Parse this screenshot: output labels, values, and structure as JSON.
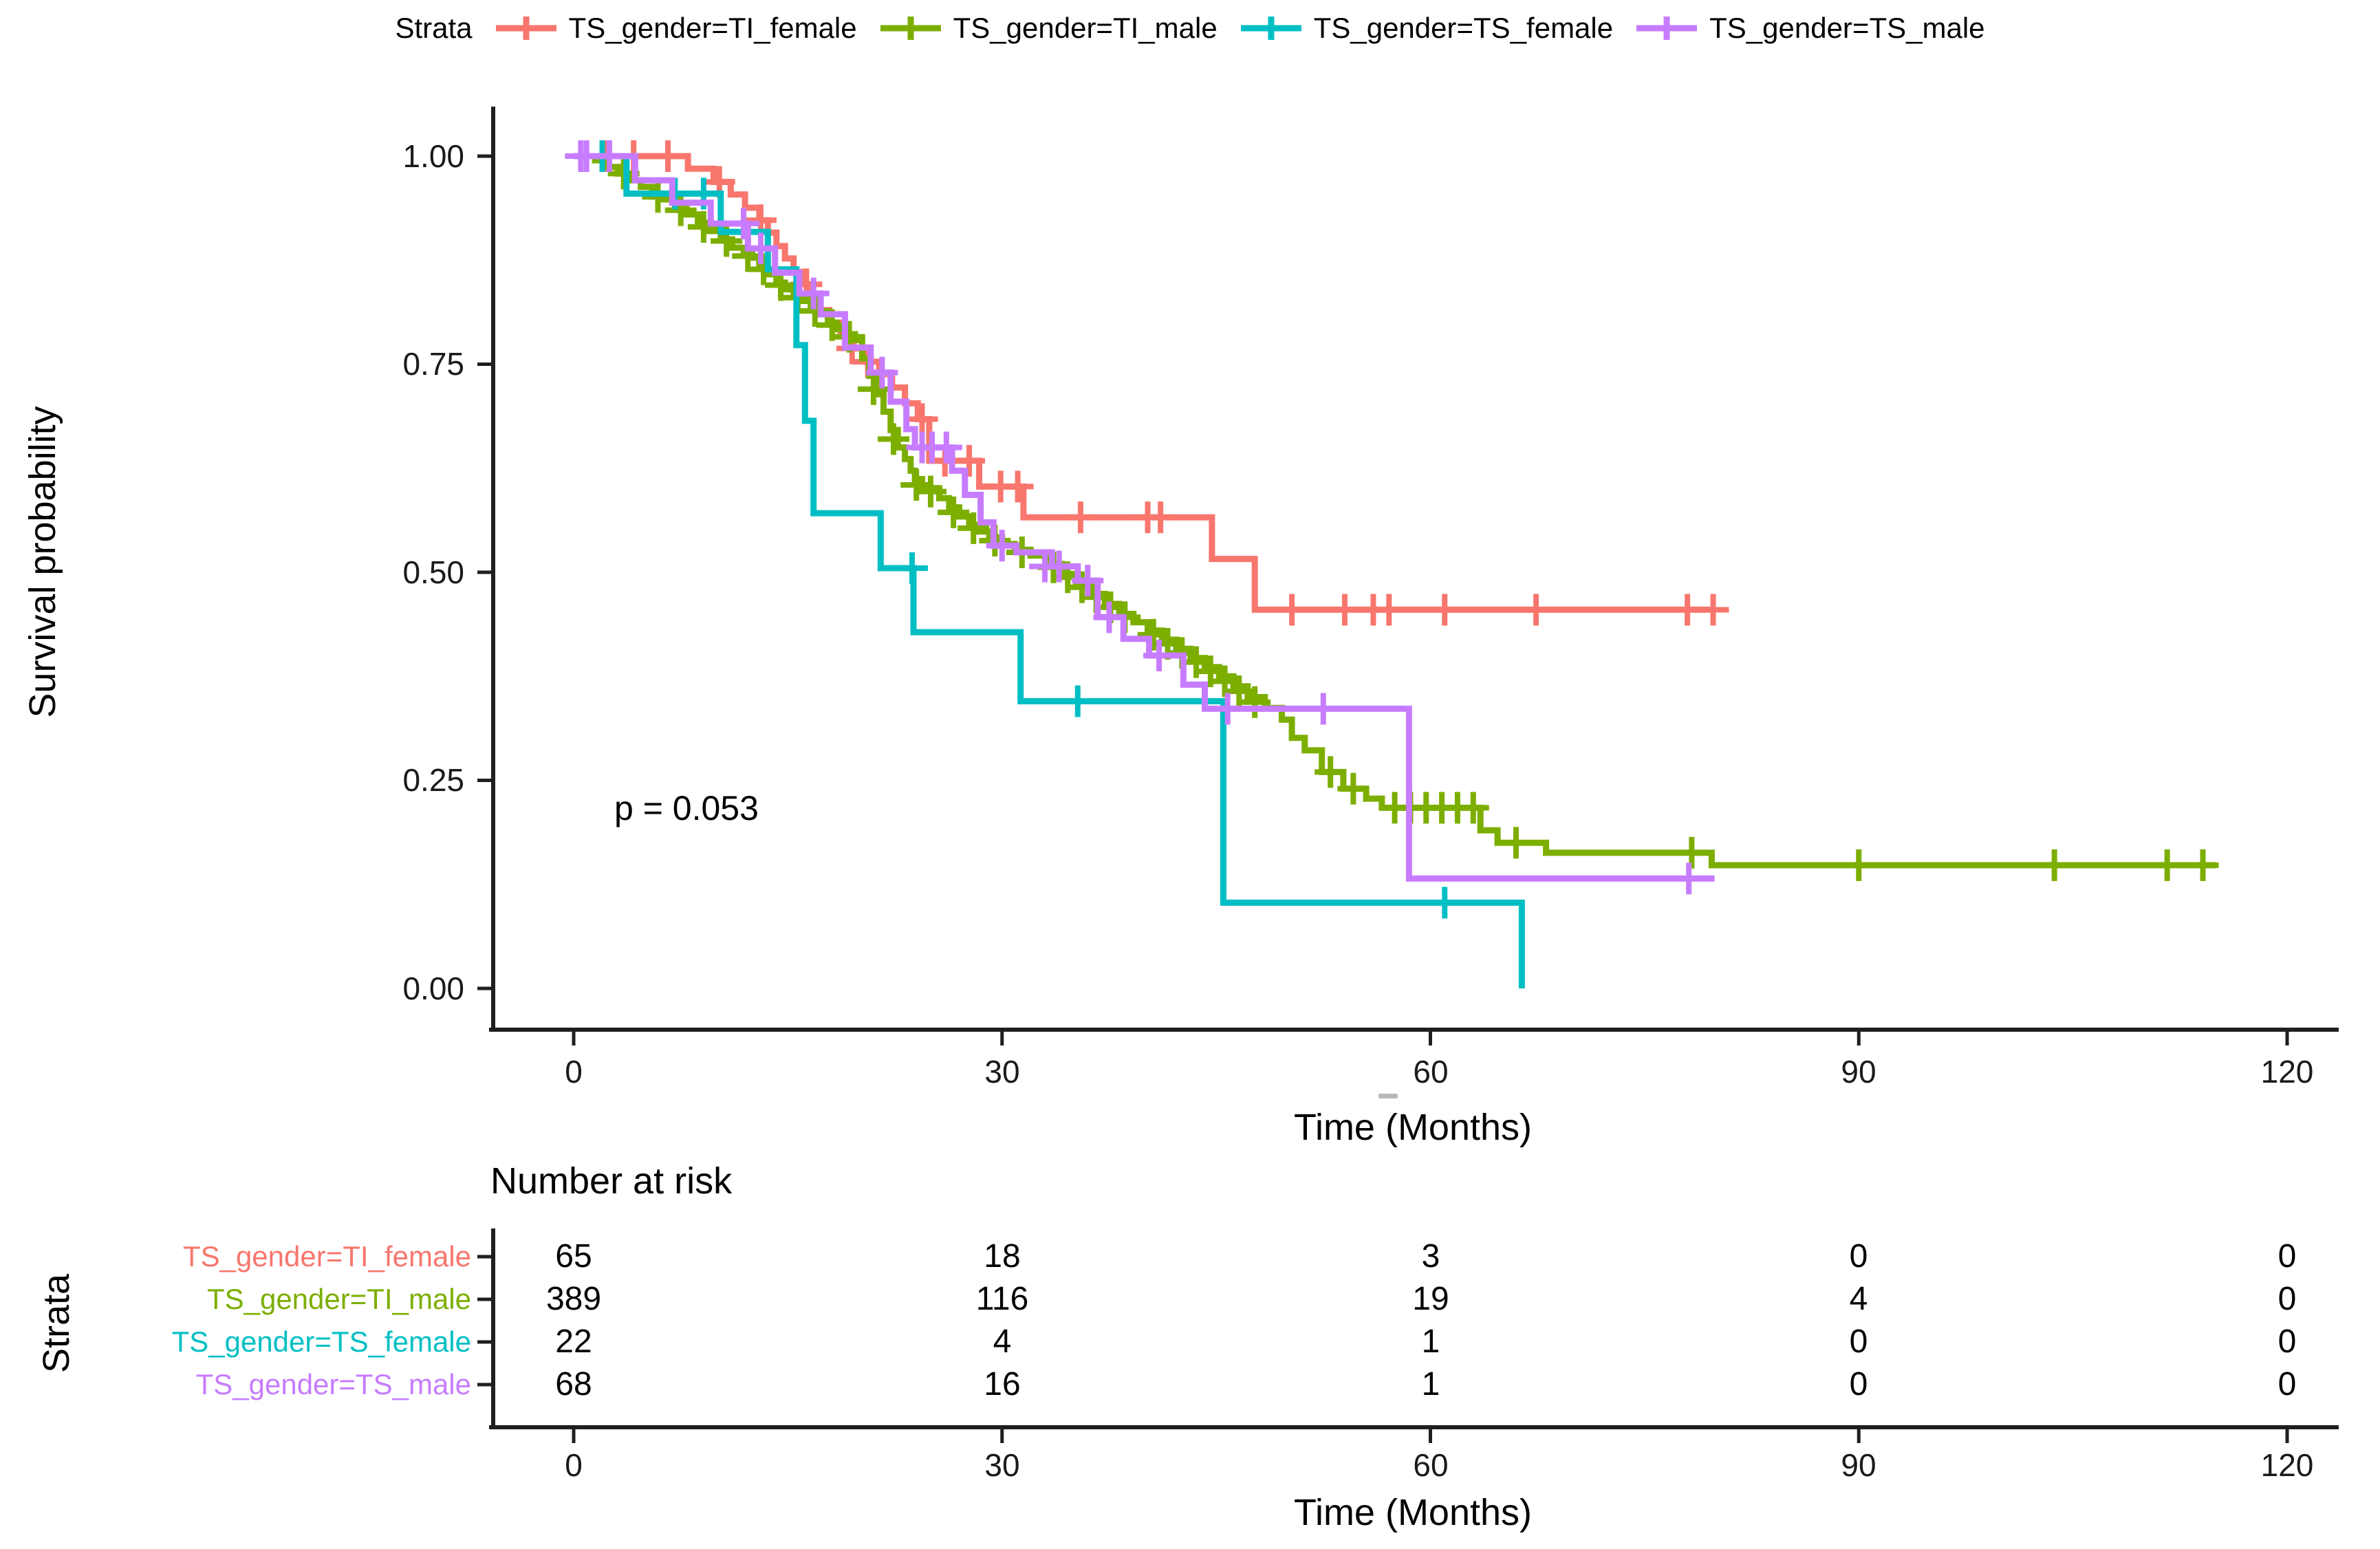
{
  "legend": {
    "title": "Strata",
    "items": [
      {
        "label": "TS_gender=TI_female",
        "color": "#F8766D"
      },
      {
        "label": "TS_gender=TI_male",
        "color": "#7CAE00"
      },
      {
        "label": "TS_gender=TS_female",
        "color": "#00BFC4"
      },
      {
        "label": "TS_gender=TS_male",
        "color": "#C77CFF"
      }
    ]
  },
  "y_axis": {
    "label": "Survival probability",
    "ticks": [
      "1.00",
      "0.75",
      "0.50",
      "0.25",
      "0.00"
    ]
  },
  "x_axis": {
    "label": "Time (Months)",
    "ticks": [
      "0",
      "30",
      "60",
      "90",
      "120"
    ]
  },
  "annotation": {
    "p_value": "p = 0.053"
  },
  "risk_table": {
    "title": "Number at risk",
    "axis_label": "Strata",
    "x_label": "Time (Months)",
    "columns": [
      "0",
      "30",
      "60",
      "90",
      "120"
    ],
    "rows": [
      {
        "label": "TS_gender=TI_female",
        "color": "#F8766D",
        "values": [
          "65",
          "18",
          "3",
          "0",
          "0"
        ]
      },
      {
        "label": "TS_gender=TI_male",
        "color": "#7CAE00",
        "values": [
          "389",
          "116",
          "19",
          "4",
          "0"
        ]
      },
      {
        "label": "TS_gender=TS_female",
        "color": "#00BFC4",
        "values": [
          "22",
          "4",
          "1",
          "0",
          "0"
        ]
      },
      {
        "label": "TS_gender=TS_male",
        "color": "#C77CFF",
        "values": [
          "68",
          "16",
          "1",
          "0",
          "0"
        ]
      }
    ]
  },
  "chart_data": {
    "type": "line",
    "subtype": "kaplan_meier_step",
    "title": "",
    "xlabel": "Time (Months)",
    "ylabel": "Survival probability",
    "xlim": [
      0,
      120
    ],
    "ylim": [
      0,
      1
    ],
    "x_ticks": [
      0,
      30,
      60,
      90,
      120
    ],
    "y_ticks": [
      1.0,
      0.75,
      0.5,
      0.25,
      0.0
    ],
    "grid": false,
    "legend_position": "top",
    "p_value_text": "p = 0.053",
    "series": [
      {
        "name": "TS_gender=TI_female",
        "color": "#F8766D",
        "n_start": 65,
        "end_t": 80,
        "steps": [
          [
            0,
            1.0
          ],
          [
            8,
            0.985
          ],
          [
            9.8,
            0.969
          ],
          [
            11,
            0.954
          ],
          [
            12,
            0.938
          ],
          [
            13,
            0.923
          ],
          [
            13.6,
            0.908
          ],
          [
            14.2,
            0.892
          ],
          [
            14.8,
            0.877
          ],
          [
            15.4,
            0.861
          ],
          [
            16,
            0.846
          ],
          [
            16.6,
            0.83
          ],
          [
            17.2,
            0.815
          ],
          [
            17.9,
            0.8
          ],
          [
            18.7,
            0.784
          ],
          [
            19.6,
            0.769
          ],
          [
            20.5,
            0.753
          ],
          [
            21.4,
            0.738
          ],
          [
            22.3,
            0.722
          ],
          [
            23.2,
            0.703
          ],
          [
            24.1,
            0.684
          ],
          [
            24.9,
            0.634
          ],
          [
            28.4,
            0.603
          ],
          [
            31.5,
            0.566
          ],
          [
            44.7,
            0.516
          ],
          [
            47.7,
            0.455
          ]
        ],
        "censors": [
          [
            2.2,
            1
          ],
          [
            4.2,
            1
          ],
          [
            6.6,
            1
          ],
          [
            10.2,
            0.969
          ],
          [
            13.1,
            0.923
          ],
          [
            16.3,
            0.846
          ],
          [
            19.5,
            0.769
          ],
          [
            20.6,
            0.753
          ],
          [
            24.4,
            0.684
          ],
          [
            26,
            0.634
          ],
          [
            27.7,
            0.634
          ],
          [
            29.9,
            0.603
          ],
          [
            31.1,
            0.603
          ],
          [
            35.5,
            0.566
          ],
          [
            40.2,
            0.566
          ],
          [
            41.1,
            0.566
          ],
          [
            50.3,
            0.455
          ],
          [
            54,
            0.455
          ],
          [
            56,
            0.455
          ],
          [
            57.1,
            0.455
          ],
          [
            61,
            0.455
          ],
          [
            67.4,
            0.455
          ],
          [
            78,
            0.455
          ],
          [
            79.8,
            0.455
          ]
        ]
      },
      {
        "name": "TS_gender=TI_male",
        "color": "#7CAE00",
        "n_start": 389,
        "end_t": 115,
        "steps": [
          [
            0,
            1.0
          ],
          [
            1.5,
            0.995
          ],
          [
            2.3,
            0.987
          ],
          [
            3.1,
            0.979
          ],
          [
            3.9,
            0.971
          ],
          [
            4.7,
            0.963
          ],
          [
            5.5,
            0.955
          ],
          [
            6.3,
            0.948
          ],
          [
            7.1,
            0.94
          ],
          [
            7.9,
            0.93
          ],
          [
            8.7,
            0.92
          ],
          [
            9.5,
            0.91
          ],
          [
            10.3,
            0.9
          ],
          [
            11.1,
            0.89
          ],
          [
            11.9,
            0.885
          ],
          [
            12.5,
            0.878
          ],
          [
            13,
            0.868
          ],
          [
            13.6,
            0.858
          ],
          [
            14.2,
            0.848
          ],
          [
            14.8,
            0.84
          ],
          [
            15.4,
            0.833
          ],
          [
            16,
            0.826
          ],
          [
            16.6,
            0.818
          ],
          [
            17.2,
            0.81
          ],
          [
            17.8,
            0.8
          ],
          [
            18.4,
            0.792
          ],
          [
            19,
            0.786
          ],
          [
            19.7,
            0.779
          ],
          [
            20.2,
            0.757
          ],
          [
            20.7,
            0.736
          ],
          [
            21.2,
            0.714
          ],
          [
            21.7,
            0.693
          ],
          [
            22.2,
            0.671
          ],
          [
            22.7,
            0.65
          ],
          [
            23.2,
            0.636
          ],
          [
            23.6,
            0.622
          ],
          [
            23.9,
            0.612
          ],
          [
            24.4,
            0.601
          ],
          [
            25.6,
            0.589
          ],
          [
            26.3,
            0.578
          ],
          [
            27,
            0.567
          ],
          [
            27.7,
            0.557
          ],
          [
            28.4,
            0.549
          ],
          [
            29.1,
            0.542
          ],
          [
            30,
            0.534
          ],
          [
            30.9,
            0.527
          ],
          [
            32,
            0.52
          ],
          [
            33.2,
            0.51
          ],
          [
            34.2,
            0.498
          ],
          [
            35.2,
            0.486
          ],
          [
            36.2,
            0.474
          ],
          [
            37.2,
            0.462
          ],
          [
            38.2,
            0.45
          ],
          [
            39.2,
            0.44
          ],
          [
            40.2,
            0.43
          ],
          [
            41.2,
            0.419
          ],
          [
            42.2,
            0.408
          ],
          [
            43.2,
            0.397
          ],
          [
            44.2,
            0.386
          ],
          [
            45.2,
            0.375
          ],
          [
            46.2,
            0.363
          ],
          [
            47.2,
            0.35
          ],
          [
            48.4,
            0.337
          ],
          [
            49.6,
            0.323
          ],
          [
            50.3,
            0.301
          ],
          [
            51.2,
            0.286
          ],
          [
            52.4,
            0.26
          ],
          [
            53.9,
            0.24
          ],
          [
            55.5,
            0.228
          ],
          [
            56.6,
            0.217
          ],
          [
            63.5,
            0.19
          ],
          [
            64.7,
            0.175
          ],
          [
            68.1,
            0.163
          ],
          [
            79.7,
            0.148
          ]
        ],
        "censors": [
          [
            3.5,
            0.979
          ],
          [
            5.9,
            0.951
          ],
          [
            7.5,
            0.935
          ],
          [
            9.1,
            0.915
          ],
          [
            10.7,
            0.898
          ],
          [
            12.2,
            0.88
          ],
          [
            13.3,
            0.864
          ],
          [
            14.5,
            0.845
          ],
          [
            15.7,
            0.83
          ],
          [
            16.9,
            0.814
          ],
          [
            18.1,
            0.797
          ],
          [
            19.3,
            0.783
          ],
          [
            21,
            0.72
          ],
          [
            22.4,
            0.66
          ],
          [
            24,
            0.605
          ],
          [
            25,
            0.597
          ],
          [
            26.6,
            0.572
          ],
          [
            28,
            0.553
          ],
          [
            29.5,
            0.538
          ],
          [
            31.4,
            0.524
          ],
          [
            33.6,
            0.506
          ],
          [
            34.6,
            0.494
          ],
          [
            35.6,
            0.482
          ],
          [
            36.6,
            0.47
          ],
          [
            37.6,
            0.458
          ],
          [
            38.6,
            0.446
          ],
          [
            40.6,
            0.425
          ],
          [
            41.6,
            0.414
          ],
          [
            42.6,
            0.403
          ],
          [
            43.6,
            0.392
          ],
          [
            44.6,
            0.381
          ],
          [
            45.6,
            0.369
          ],
          [
            46.6,
            0.357
          ],
          [
            47.7,
            0.344
          ],
          [
            53,
            0.26
          ],
          [
            54.6,
            0.24
          ],
          [
            57.5,
            0.217
          ],
          [
            58.6,
            0.217
          ],
          [
            59.7,
            0.217
          ],
          [
            60.8,
            0.217
          ],
          [
            61.9,
            0.217
          ],
          [
            63,
            0.217
          ],
          [
            66,
            0.175
          ],
          [
            78.3,
            0.163
          ],
          [
            90,
            0.148
          ],
          [
            103.7,
            0.148
          ],
          [
            111.6,
            0.148
          ],
          [
            114.1,
            0.148
          ]
        ]
      },
      {
        "name": "TS_gender=TS_female",
        "color": "#00BFC4",
        "n_start": 22,
        "end_t": 66.4,
        "steps": [
          [
            0,
            1.0
          ],
          [
            3.7,
            0.955
          ],
          [
            10.3,
            0.909
          ],
          [
            13.6,
            0.864
          ],
          [
            15.6,
            0.773
          ],
          [
            16.2,
            0.682
          ],
          [
            16.8,
            0.571
          ],
          [
            21.5,
            0.505
          ],
          [
            23.8,
            0.428
          ],
          [
            31.3,
            0.345
          ],
          [
            45.5,
            0.103
          ],
          [
            66.4,
            0.0
          ]
        ],
        "censors": [
          [
            2,
            1
          ],
          [
            7.1,
            0.955
          ],
          [
            9.1,
            0.955
          ],
          [
            23.7,
            0.505
          ],
          [
            35.3,
            0.345
          ],
          [
            61,
            0.103
          ]
        ]
      },
      {
        "name": "TS_gender=TS_male",
        "color": "#C77CFF",
        "n_start": 68,
        "end_t": 79.9,
        "steps": [
          [
            0,
            1.0
          ],
          [
            4.3,
            0.971
          ],
          [
            6.9,
            0.944
          ],
          [
            9.6,
            0.919
          ],
          [
            12.2,
            0.889
          ],
          [
            14.1,
            0.86
          ],
          [
            15.8,
            0.835
          ],
          [
            17.3,
            0.81
          ],
          [
            19,
            0.77
          ],
          [
            20.8,
            0.74
          ],
          [
            22.2,
            0.705
          ],
          [
            23.3,
            0.672
          ],
          [
            23.9,
            0.65
          ],
          [
            26.5,
            0.622
          ],
          [
            27.4,
            0.593
          ],
          [
            28.5,
            0.56
          ],
          [
            29.4,
            0.532
          ],
          [
            31,
            0.524
          ],
          [
            33.5,
            0.507
          ],
          [
            35.3,
            0.49
          ],
          [
            36.7,
            0.446
          ],
          [
            38.5,
            0.42
          ],
          [
            40.3,
            0.4
          ],
          [
            42.7,
            0.365
          ],
          [
            44.2,
            0.336
          ],
          [
            58.5,
            0.132
          ]
        ],
        "censors": [
          [
            0.5,
            1
          ],
          [
            0.9,
            1
          ],
          [
            2.5,
            1
          ],
          [
            11.9,
            0.919
          ],
          [
            13.1,
            0.889
          ],
          [
            16.8,
            0.835
          ],
          [
            21.6,
            0.74
          ],
          [
            24.4,
            0.65
          ],
          [
            25.1,
            0.65
          ],
          [
            26.1,
            0.65
          ],
          [
            30,
            0.532
          ],
          [
            33,
            0.507
          ],
          [
            34,
            0.507
          ],
          [
            36,
            0.49
          ],
          [
            37.5,
            0.446
          ],
          [
            41,
            0.4
          ],
          [
            45.8,
            0.336
          ],
          [
            52.5,
            0.336
          ],
          [
            78.1,
            0.132
          ]
        ]
      }
    ]
  }
}
